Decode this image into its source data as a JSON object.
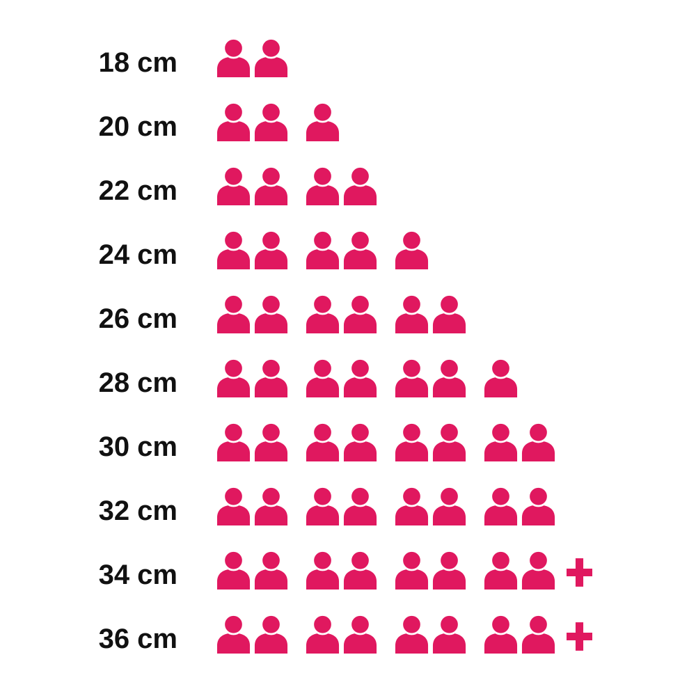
{
  "chart_data": {
    "type": "bar",
    "variant": "pictogram",
    "orientation": "horizontal",
    "icon": "person-icon",
    "overflow_icon": "plus-icon",
    "categories": [
      "18 cm",
      "20 cm",
      "22 cm",
      "24 cm",
      "26 cm",
      "28 cm",
      "30 cm",
      "32 cm",
      "34 cm",
      "36 cm"
    ],
    "values": [
      2,
      3,
      4,
      5,
      6,
      7,
      8,
      8,
      8,
      8
    ],
    "overflow_plus": [
      false,
      false,
      false,
      false,
      false,
      false,
      false,
      false,
      true,
      true
    ],
    "value_labels": [
      "2",
      "3",
      "4",
      "5",
      "6",
      "7",
      "8",
      "8",
      "8+",
      "8+"
    ],
    "icon_grouping": 2,
    "colors": {
      "icon": "#e0185f",
      "label": "#111111",
      "background": "#ffffff"
    },
    "legend": null,
    "grid": false
  }
}
